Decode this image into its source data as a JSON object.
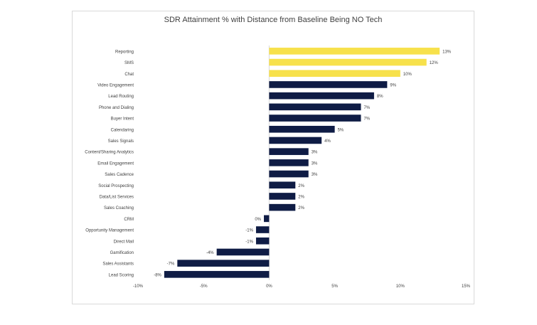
{
  "chart_data": {
    "type": "bar",
    "orientation": "horizontal",
    "title": "SDR Attainment % with Distance from Baseline Being NO Tech",
    "xlabel": "",
    "ylabel": "",
    "xlim": [
      -10,
      15
    ],
    "x_ticks": [
      "-10%",
      "-5%",
      "0%",
      "5%",
      "10%",
      "15%"
    ],
    "grid": false,
    "legend": "none",
    "categories": [
      "Reporting",
      "SMS",
      "Chat",
      "Video Engagement",
      "Lead Routing",
      "Phone and Dialing",
      "Buyer Intent",
      "Calendaring",
      "Sales Signals",
      "Content/Sharing Analytics",
      "Email Engagement",
      "Sales Cadence",
      "Social Prospecting",
      "Data/List Services",
      "Sales Coaching",
      "CRM",
      "Opportunity Management",
      "Direct Mail",
      "Gamification",
      "Sales Assistants",
      "Lead Scoring"
    ],
    "values": [
      13.0,
      12.0,
      10.0,
      9.0,
      8.0,
      7.0,
      7.0,
      5.0,
      4.0,
      3.0,
      3.0,
      3.0,
      2.0,
      2.0,
      2.0,
      -0.4,
      -1.0,
      -1.0,
      -4.0,
      -7.0,
      -8.0
    ],
    "labels": [
      "13%",
      "12%",
      "10%",
      "9%",
      "8%",
      "7%",
      "7%",
      "5%",
      "4%",
      "3%",
      "3%",
      "3%",
      "2%",
      "2%",
      "2%",
      "0%",
      "-1%",
      "-1%",
      "-4%",
      "-7%",
      "-8%"
    ],
    "highlight_count": 3,
    "colors": {
      "highlight": "#f7e14b",
      "default": "#0f1c45",
      "axis": "#d9d9d9",
      "text": "#404040"
    }
  }
}
